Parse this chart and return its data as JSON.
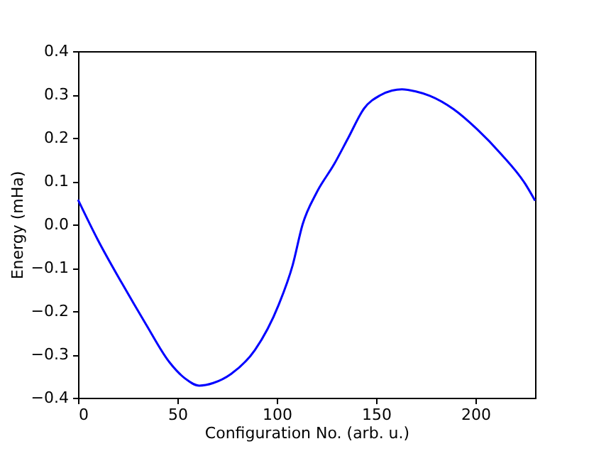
{
  "chart_data": {
    "type": "line",
    "xlabel": "Configuration No. (arb. u.)",
    "ylabel": "Energy (mHa)",
    "x": [
      0,
      10,
      22,
      34,
      46,
      54,
      61,
      68,
      77,
      89,
      101,
      108,
      113,
      120,
      129,
      136,
      144,
      152,
      158,
      163,
      170,
      177,
      189,
      201,
      213,
      225,
      230
    ],
    "series": [
      {
        "color": "#0000ff",
        "values": [
          0.057,
          -0.036,
          -0.135,
          -0.229,
          -0.318,
          -0.356,
          -0.372,
          -0.366,
          -0.345,
          -0.29,
          -0.185,
          -0.094,
          0.0,
          0.073,
          0.14,
          0.2,
          0.268,
          0.298,
          0.309,
          0.312,
          0.307,
          0.297,
          0.266,
          0.219,
          0.162,
          0.094,
          0.055
        ]
      }
    ],
    "xlim": [
      0,
      230
    ],
    "xticks": [
      0,
      50,
      100,
      150,
      200
    ],
    "ylim": [
      -0.4,
      0.4
    ],
    "yticks": [
      {
        "value": -0.4,
        "label": "−0.4"
      },
      {
        "value": -0.3,
        "label": "−0.3"
      },
      {
        "value": -0.2,
        "label": "−0.2"
      },
      {
        "value": -0.1,
        "label": "−0.1"
      },
      {
        "value": 0,
        "label": "0.0"
      },
      {
        "value": 0.1,
        "label": "0.1"
      },
      {
        "value": 0.2,
        "label": "0.2"
      },
      {
        "value": 0.3,
        "label": "0.3"
      },
      {
        "value": 0.4,
        "label": "0.4"
      }
    ],
    "grid": false,
    "marker": "none",
    "line_style": "solid"
  }
}
